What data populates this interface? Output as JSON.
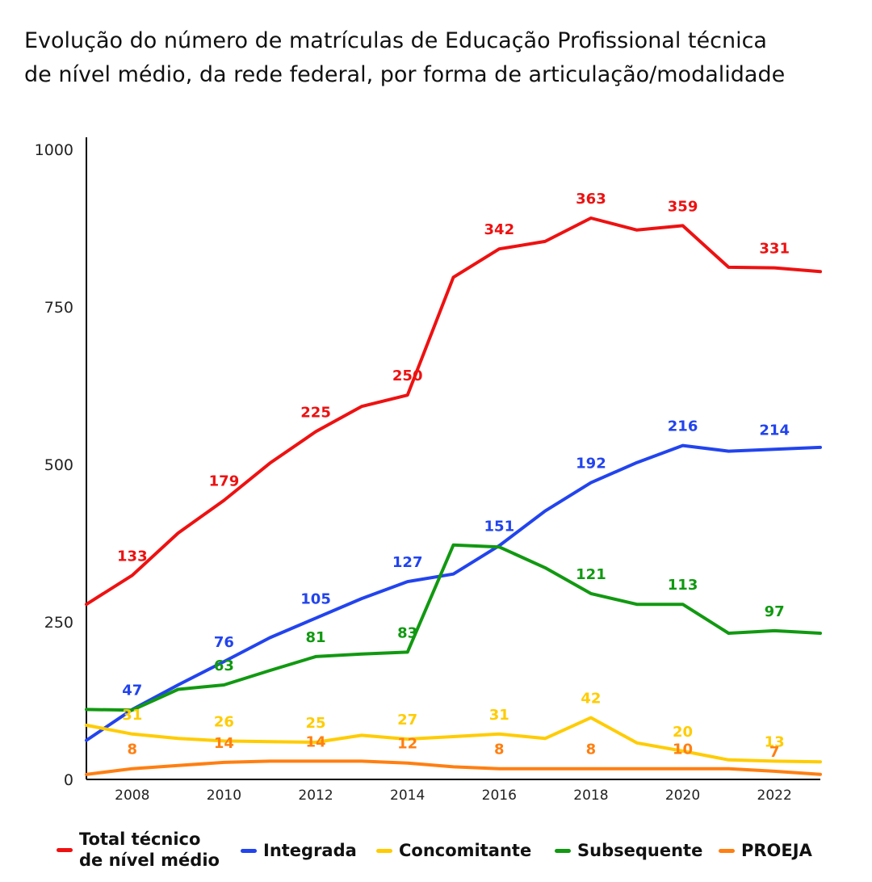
{
  "title_lines": [
    "Evolução do número de matrículas de Educação Profissional técnica",
    "de nível médio, da rede federal, por forma de  articulação/modalidade"
  ],
  "chart_data": {
    "type": "line",
    "title": "Evolução do número de matrículas de Educação Profissional técnica de nível médio, da rede federal, por forma de  articulação/modalidade",
    "xlim": [
      2007,
      2023
    ],
    "ylim": [
      0,
      1000
    ],
    "x_ticks": [
      2008,
      2010,
      2012,
      2014,
      2016,
      2018,
      2020,
      2022
    ],
    "y_ticks": [
      0,
      250,
      500,
      750,
      1000
    ],
    "x": [
      2007,
      2008,
      2009,
      2010,
      2011,
      2012,
      2013,
      2014,
      2015,
      2016,
      2017,
      2018,
      2019,
      2020,
      2021,
      2022,
      2023
    ],
    "grid": false,
    "legend_position": "bottom",
    "series": [
      {
        "name": "Total técnico\nde nível médio",
        "color": "#ee1111",
        "values": [
          278,
          324,
          391,
          443,
          502,
          552,
          592,
          610,
          797,
          842,
          854,
          891,
          872,
          879,
          813,
          812,
          806
        ],
        "labels": [
          {
            "x": 2008,
            "text": "133"
          },
          {
            "x": 2010,
            "text": "179"
          },
          {
            "x": 2012,
            "text": "225"
          },
          {
            "x": 2014,
            "text": "250"
          },
          {
            "x": 2016,
            "text": "342"
          },
          {
            "x": 2018,
            "text": "363"
          },
          {
            "x": 2020,
            "text": "359"
          },
          {
            "x": 2022,
            "text": "331"
          }
        ]
      },
      {
        "name": "Integrada",
        "color": "#2244ee",
        "values": [
          62,
          111,
          150,
          187,
          225,
          256,
          287,
          314,
          326,
          371,
          426,
          471,
          503,
          530,
          521,
          524,
          527
        ],
        "labels": [
          {
            "x": 2008,
            "text": "47"
          },
          {
            "x": 2010,
            "text": "76"
          },
          {
            "x": 2012,
            "text": "105"
          },
          {
            "x": 2014,
            "text": "127"
          },
          {
            "x": 2016,
            "text": "151"
          },
          {
            "x": 2018,
            "text": "192"
          },
          {
            "x": 2020,
            "text": "216"
          },
          {
            "x": 2022,
            "text": "214"
          }
        ]
      },
      {
        "name": "Concomitante",
        "color": "#ffcc00",
        "values": [
          86,
          72,
          65,
          61,
          60,
          59,
          70,
          64,
          68,
          72,
          65,
          98,
          58,
          45,
          31,
          29,
          28
        ],
        "labels": [
          {
            "x": 2008,
            "text": "31"
          },
          {
            "x": 2010,
            "text": "26"
          },
          {
            "x": 2012,
            "text": "25"
          },
          {
            "x": 2014,
            "text": "27"
          },
          {
            "x": 2016,
            "text": "31"
          },
          {
            "x": 2018,
            "text": "42"
          },
          {
            "x": 2020,
            "text": "20"
          },
          {
            "x": 2022,
            "text": "13"
          }
        ]
      },
      {
        "name": "Subsequente",
        "color": "#119911",
        "values": [
          111,
          110,
          143,
          150,
          173,
          195,
          199,
          202,
          372,
          369,
          336,
          295,
          278,
          278,
          232,
          236,
          232
        ],
        "labels": [
          {
            "x": 2010,
            "text": "63"
          },
          {
            "x": 2012,
            "text": "81"
          },
          {
            "x": 2014,
            "text": "83"
          },
          {
            "x": 2018,
            "text": "121"
          },
          {
            "x": 2020,
            "text": "113"
          },
          {
            "x": 2022,
            "text": "97"
          }
        ]
      },
      {
        "name": "PROEJA",
        "color": "#ff7f11",
        "values": [
          8,
          17,
          22,
          27,
          29,
          29,
          29,
          26,
          20,
          17,
          17,
          17,
          17,
          17,
          17,
          13,
          8
        ],
        "labels": [
          {
            "x": 2008,
            "text": "8"
          },
          {
            "x": 2010,
            "text": "14"
          },
          {
            "x": 2012,
            "text": "14"
          },
          {
            "x": 2014,
            "text": "12"
          },
          {
            "x": 2016,
            "text": "8"
          },
          {
            "x": 2018,
            "text": "8"
          },
          {
            "x": 2020,
            "text": "10"
          },
          {
            "x": 2022,
            "text": "7"
          }
        ]
      }
    ]
  }
}
